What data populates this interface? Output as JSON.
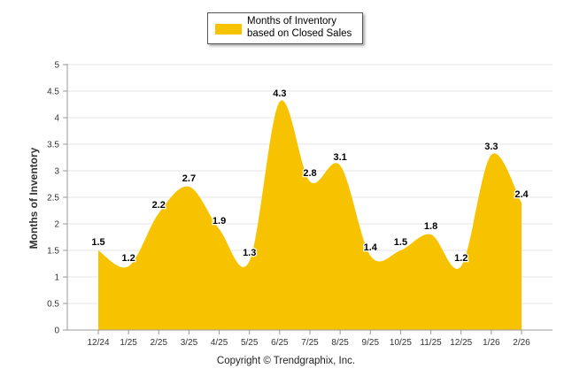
{
  "legend": {
    "label": "Months of Inventory based on Closed Sales"
  },
  "footer": {
    "copyright": "Copyright © Trendgraphix, Inc."
  },
  "colors": {
    "series": "#F7C200",
    "grid": "#e6e6e6",
    "axis": "#999999"
  },
  "chart_data": {
    "type": "area",
    "categories": [
      "12/24",
      "1/25",
      "2/25",
      "3/25",
      "4/25",
      "5/25",
      "6/25",
      "7/25",
      "8/25",
      "9/25",
      "10/25",
      "11/25",
      "12/25",
      "1/26",
      "2/26"
    ],
    "series": [
      {
        "name": "Months of Inventory based on Closed Sales",
        "values": [
          1.5,
          1.2,
          2.2,
          2.7,
          1.9,
          1.3,
          4.3,
          2.8,
          3.1,
          1.4,
          1.5,
          1.8,
          1.2,
          3.3,
          2.4
        ]
      }
    ],
    "data_labels": [
      "1.5",
      "1.2",
      "2.2",
      "2.7",
      "1.9",
      "1.3",
      "4.3",
      "2.8",
      "3.1",
      "1.4",
      "1.5",
      "1.8",
      "1.2",
      "3.3",
      "2.4"
    ],
    "ylabel": "Months of Inventory",
    "xlabel": "",
    "ylim": [
      0,
      5
    ],
    "yticks": [
      "0",
      "0.5",
      "1",
      "1.5",
      "2",
      "2.5",
      "3",
      "3.5",
      "4",
      "4.5",
      "5"
    ],
    "grid": true,
    "legend_position": "top-center"
  }
}
